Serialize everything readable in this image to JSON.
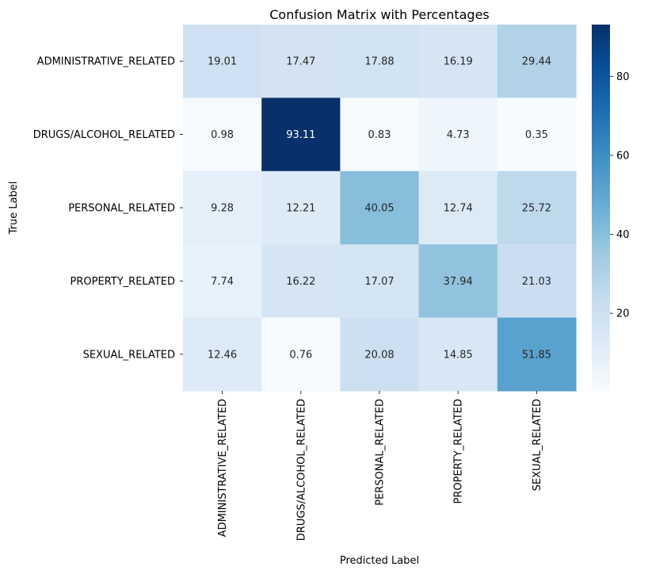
{
  "chart_data": {
    "type": "heatmap",
    "title": "Confusion Matrix with Percentages",
    "xlabel": "Predicted Label",
    "ylabel": "True Label",
    "x_categories": [
      "ADMINISTRATIVE_RELATED",
      "DRUGS/ALCOHOL_RELATED",
      "PERSONAL_RELATED",
      "PROPERTY_RELATED",
      "SEXUAL_RELATED"
    ],
    "y_categories": [
      "ADMINISTRATIVE_RELATED",
      "DRUGS/ALCOHOL_RELATED",
      "PERSONAL_RELATED",
      "PROPERTY_RELATED",
      "SEXUAL_RELATED"
    ],
    "values": [
      [
        19.01,
        17.47,
        17.88,
        16.19,
        29.44
      ],
      [
        0.98,
        93.11,
        0.83,
        4.73,
        0.35
      ],
      [
        9.28,
        12.21,
        40.05,
        12.74,
        25.72
      ],
      [
        7.74,
        16.22,
        17.07,
        37.94,
        21.03
      ],
      [
        12.46,
        0.76,
        20.08,
        14.85,
        51.85
      ]
    ],
    "value_labels": [
      [
        "19.01",
        "17.47",
        "17.88",
        "16.19",
        "29.44"
      ],
      [
        "0.98",
        "93.11",
        "0.83",
        "4.73",
        "0.35"
      ],
      [
        "9.28",
        "12.21",
        "40.05",
        "12.74",
        "25.72"
      ],
      [
        "7.74",
        "16.22",
        "17.07",
        "37.94",
        "21.03"
      ],
      [
        "12.46",
        "0.76",
        "20.08",
        "14.85",
        "51.85"
      ]
    ],
    "colormap": "Blues",
    "colorbar": {
      "range": [
        0.35,
        93.11
      ],
      "ticks": [
        20,
        40,
        60,
        80
      ],
      "tick_labels": [
        "20",
        "40",
        "60",
        "80"
      ]
    },
    "grid": false,
    "legend": "none"
  }
}
